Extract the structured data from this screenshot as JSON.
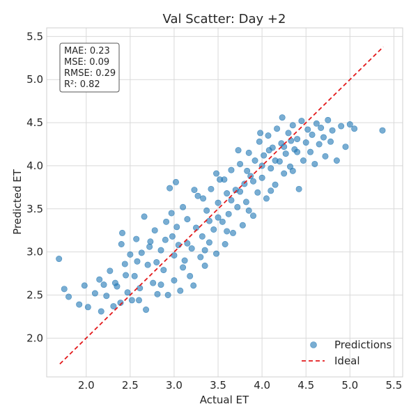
{
  "chart_data": {
    "type": "scatter",
    "title": "Val Scatter: Day +2",
    "xlabel": "Actual ET",
    "ylabel": "Predicted ET",
    "xlim": [
      1.55,
      5.6
    ],
    "ylim": [
      1.55,
      5.6
    ],
    "xticks": [
      "2.0",
      "2.5",
      "3.0",
      "3.5",
      "4.0",
      "4.5",
      "5.0",
      "5.5"
    ],
    "yticks": [
      "2.0",
      "2.5",
      "3.0",
      "3.5",
      "4.0",
      "4.5",
      "5.0",
      "5.5"
    ],
    "grid": true,
    "stats": [
      "MAE: 0.23",
      "MSE: 0.09",
      "RMSE: 0.29",
      "R²: 0.82"
    ],
    "legend": {
      "position": "bottom-right",
      "entries": [
        "Predictions",
        "Ideal"
      ]
    },
    "colors": {
      "points": "#1f77b4",
      "ideal": "#e31a1c"
    },
    "ideal_line": {
      "x": [
        1.7,
        5.38
      ],
      "y": [
        1.7,
        5.38
      ]
    },
    "series": [
      {
        "name": "Predictions",
        "points": [
          [
            1.69,
            2.92
          ],
          [
            1.75,
            2.57
          ],
          [
            1.8,
            2.48
          ],
          [
            1.92,
            2.39
          ],
          [
            1.98,
            2.61
          ],
          [
            2.02,
            2.36
          ],
          [
            2.1,
            2.52
          ],
          [
            2.15,
            2.68
          ],
          [
            2.17,
            2.31
          ],
          [
            2.2,
            2.62
          ],
          [
            2.23,
            2.49
          ],
          [
            2.27,
            2.78
          ],
          [
            2.31,
            2.37
          ],
          [
            2.35,
            2.6
          ],
          [
            2.39,
            2.41
          ],
          [
            2.4,
            3.09
          ],
          [
            2.41,
            3.22
          ],
          [
            2.44,
            2.86
          ],
          [
            2.47,
            2.53
          ],
          [
            2.5,
            2.97
          ],
          [
            2.52,
            2.44
          ],
          [
            2.55,
            2.72
          ],
          [
            2.57,
            3.15
          ],
          [
            2.61,
            2.58
          ],
          [
            2.63,
            2.99
          ],
          [
            2.66,
            3.41
          ],
          [
            2.68,
            2.33
          ],
          [
            2.7,
            2.85
          ],
          [
            2.73,
            3.12
          ],
          [
            2.76,
            2.64
          ],
          [
            2.78,
            3.25
          ],
          [
            2.81,
            2.51
          ],
          [
            2.85,
            3.02
          ],
          [
            2.88,
            2.79
          ],
          [
            2.91,
            3.35
          ],
          [
            2.93,
            2.5
          ],
          [
            2.95,
            3.74
          ],
          [
            2.98,
            3.18
          ],
          [
            3.0,
            2.67
          ],
          [
            3.02,
            3.81
          ],
          [
            3.05,
            3.08
          ],
          [
            3.07,
            2.55
          ],
          [
            3.1,
            3.52
          ],
          [
            3.12,
            2.9
          ],
          [
            3.15,
            3.38
          ],
          [
            3.18,
            2.72
          ],
          [
            3.2,
            3.04
          ],
          [
            3.22,
            2.61
          ],
          [
            3.25,
            3.28
          ],
          [
            3.27,
            3.65
          ],
          [
            3.3,
            2.94
          ],
          [
            3.32,
            3.18
          ],
          [
            3.35,
            2.84
          ],
          [
            3.37,
            3.48
          ],
          [
            3.4,
            3.11
          ],
          [
            3.42,
            3.73
          ],
          [
            3.45,
            3.26
          ],
          [
            3.48,
            2.98
          ],
          [
            3.5,
            3.57
          ],
          [
            3.52,
            3.84
          ],
          [
            3.55,
            3.35
          ],
          [
            3.58,
            3.09
          ],
          [
            3.6,
            3.68
          ],
          [
            3.62,
            3.44
          ],
          [
            3.65,
            3.95
          ],
          [
            3.67,
            3.22
          ],
          [
            3.7,
            3.72
          ],
          [
            3.72,
            3.52
          ],
          [
            3.75,
            4.02
          ],
          [
            3.78,
            3.31
          ],
          [
            3.8,
            3.79
          ],
          [
            3.82,
            3.58
          ],
          [
            3.85,
            4.15
          ],
          [
            3.87,
            3.88
          ],
          [
            3.9,
            3.42
          ],
          [
            3.92,
            4.06
          ],
          [
            3.95,
            3.69
          ],
          [
            3.97,
            4.28
          ],
          [
            4.0,
            3.86
          ],
          [
            4.02,
            4.12
          ],
          [
            4.05,
            3.62
          ],
          [
            4.07,
            4.35
          ],
          [
            4.1,
            3.97
          ],
          [
            4.12,
            4.21
          ],
          [
            4.15,
            3.78
          ],
          [
            4.17,
            4.43
          ],
          [
            4.2,
            4.05
          ],
          [
            4.22,
            4.26
          ],
          [
            4.25,
            3.91
          ],
          [
            4.27,
            4.14
          ],
          [
            4.3,
            4.38
          ],
          [
            4.32,
            3.99
          ],
          [
            4.35,
            4.47
          ],
          [
            4.37,
            4.19
          ],
          [
            4.4,
            4.31
          ],
          [
            4.42,
            3.73
          ],
          [
            4.45,
            4.52
          ],
          [
            4.47,
            4.06
          ],
          [
            4.5,
            4.27
          ],
          [
            4.52,
            4.42
          ],
          [
            4.55,
            4.16
          ],
          [
            4.57,
            4.36
          ],
          [
            4.6,
            4.02
          ],
          [
            4.62,
            4.49
          ],
          [
            4.65,
            4.25
          ],
          [
            4.67,
            4.44
          ],
          [
            4.7,
            4.33
          ],
          [
            4.72,
            4.11
          ],
          [
            4.75,
            4.53
          ],
          [
            4.78,
            4.28
          ],
          [
            4.8,
            4.41
          ],
          [
            4.85,
            4.06
          ],
          [
            4.9,
            4.46
          ],
          [
            4.95,
            4.22
          ],
          [
            5.0,
            4.48
          ],
          [
            5.05,
            4.43
          ],
          [
            5.37,
            4.41
          ],
          [
            2.33,
            2.64
          ],
          [
            2.58,
            2.89
          ],
          [
            2.8,
            2.88
          ],
          [
            3.03,
            3.29
          ],
          [
            3.33,
            3.62
          ],
          [
            3.57,
            3.84
          ],
          [
            3.83,
            3.94
          ],
          [
            4.08,
            4.18
          ],
          [
            4.33,
            4.29
          ],
          [
            2.6,
            2.44
          ],
          [
            2.85,
            2.62
          ],
          [
            3.1,
            2.82
          ],
          [
            3.35,
            3.02
          ],
          [
            3.6,
            3.24
          ],
          [
            3.85,
            3.48
          ],
          [
            4.1,
            3.71
          ],
          [
            4.35,
            3.94
          ],
          [
            2.45,
            2.73
          ],
          [
            2.72,
            3.06
          ],
          [
            2.97,
            3.45
          ],
          [
            3.23,
            3.72
          ],
          [
            3.48,
            3.91
          ],
          [
            3.73,
            4.18
          ],
          [
            3.98,
            4.38
          ],
          [
            4.23,
            4.56
          ],
          [
            2.9,
            3.14
          ],
          [
            3.15,
            3.1
          ],
          [
            3.4,
            3.36
          ],
          [
            3.65,
            3.6
          ],
          [
            3.9,
            3.82
          ],
          [
            4.15,
            4.06
          ],
          [
            4.4,
            4.16
          ],
          [
            3.0,
            2.96
          ],
          [
            3.5,
            3.4
          ],
          [
            4.0,
            4.0
          ],
          [
            4.25,
            4.22
          ],
          [
            3.75,
            3.7
          ]
        ]
      }
    ]
  }
}
